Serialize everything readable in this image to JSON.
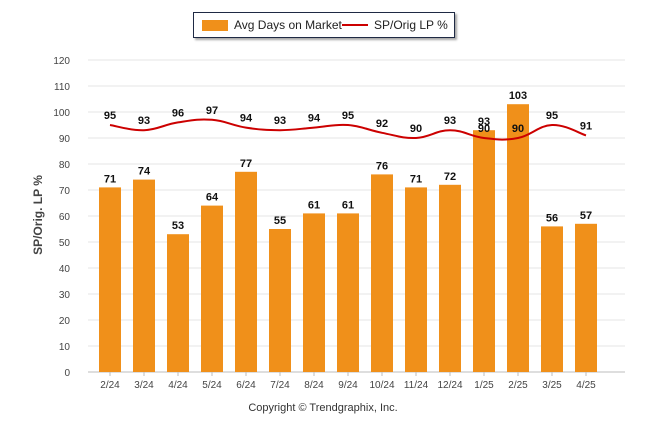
{
  "legend": {
    "bar_label": "Avg Days on Market",
    "line_label": "SP/Orig LP %"
  },
  "copyright": "Copyright © Trendgraphix, Inc.",
  "colors": {
    "bar": "#f0901a",
    "line": "#cc0000",
    "grid": "#e6e6e6",
    "axis_text": "#444444",
    "label_text": "#111111"
  },
  "chart_data": {
    "type": "bar",
    "categories": [
      "2/24",
      "3/24",
      "4/24",
      "5/24",
      "6/24",
      "7/24",
      "8/24",
      "9/24",
      "10/24",
      "11/24",
      "12/24",
      "1/25",
      "2/25",
      "3/25",
      "4/25"
    ],
    "series": [
      {
        "name": "Avg Days on Market",
        "type": "bar",
        "values": [
          71,
          74,
          53,
          64,
          77,
          55,
          61,
          61,
          76,
          71,
          72,
          93,
          103,
          56,
          57
        ]
      },
      {
        "name": "SP/Orig LP %",
        "type": "line",
        "values": [
          95,
          93,
          96,
          97,
          94,
          93,
          94,
          95,
          92,
          90,
          93,
          90,
          90,
          95,
          91
        ]
      }
    ],
    "ylabel": "SP/Orig. LP %",
    "ylim": [
      0,
      120
    ],
    "yticks": [
      0,
      10,
      20,
      30,
      40,
      50,
      60,
      70,
      80,
      90,
      100,
      110,
      120
    ],
    "grid": true,
    "legend_position": "top-center"
  }
}
